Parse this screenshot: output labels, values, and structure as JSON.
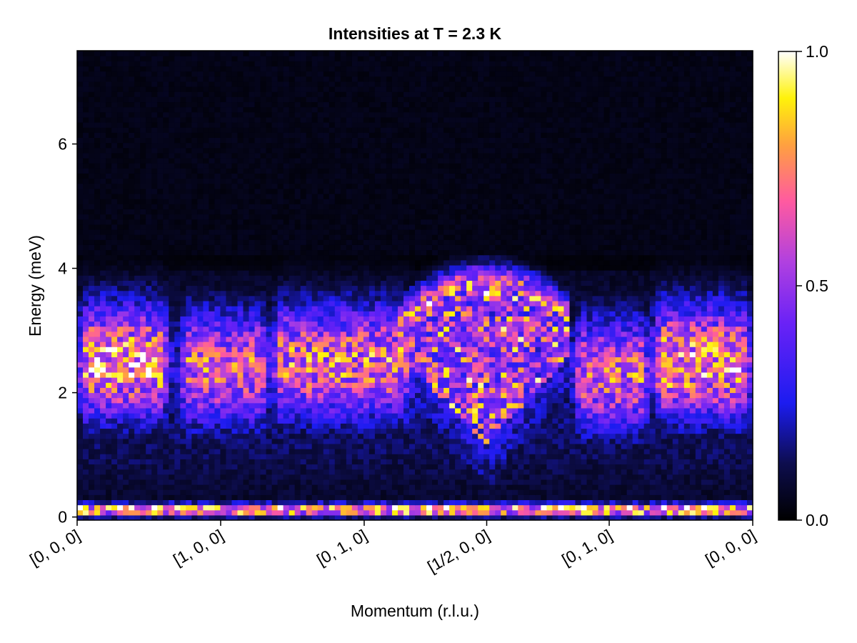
{
  "chart_data": {
    "type": "heatmap",
    "title": "Intensities at T = 2.3 K",
    "xlabel": "Momentum (r.l.u.)",
    "ylabel": "Energy (meV)",
    "x_path_ticks": [
      {
        "pos": 0.0,
        "label": "[0, 0, 0]"
      },
      {
        "pos": 1.0,
        "label": "[1, 0, 0]"
      },
      {
        "pos": 2.0,
        "label": "[0, 1, 0]"
      },
      {
        "pos": 2.8536,
        "label": "[1/2, 0, 0]"
      },
      {
        "pos": 3.7071,
        "label": "[0, 1, 0]"
      },
      {
        "pos": 4.7071,
        "label": "[0, 0, 0]"
      }
    ],
    "xlim": [
      0,
      4.7071
    ],
    "ylim": [
      -0.05,
      7.5
    ],
    "yticks": [
      0,
      2,
      4,
      6
    ],
    "colorbar": {
      "colormap": "gnuplot2",
      "range": [
        0.0,
        1.0
      ],
      "ticks": [
        "0.0",
        "0.5",
        "1.0"
      ]
    },
    "grid": false,
    "features": [
      {
        "name": "elastic line",
        "energy": 0.12,
        "intensity": 1.0
      },
      {
        "name": "dome near [1/2, 0, 0]",
        "x_from": 2.25,
        "x_to": 3.45,
        "e_top": 3.7,
        "intensity": 0.85
      },
      {
        "name": "band [0, 0, 0]-[1, 0, 0]",
        "x_from": 0.0,
        "x_to": 0.65,
        "e_center": 2.5,
        "intensity": 0.9
      },
      {
        "name": "band near [1, 0, 0]",
        "x_from": 0.7,
        "x_to": 1.35,
        "e_center": 2.4,
        "intensity": 0.75
      },
      {
        "name": "band rising to [0, 1, 0]",
        "x_from": 1.35,
        "x_to": 2.35,
        "e_center": 2.5,
        "intensity": 0.8
      },
      {
        "name": "band after [0, 1, 0]",
        "x_from": 3.45,
        "x_to": 4.0,
        "e_center": 2.3,
        "intensity": 0.75
      },
      {
        "name": "band toward [0, 0, 0]",
        "x_from": 4.0,
        "x_to": 4.7071,
        "e_center": 2.5,
        "intensity": 0.9
      }
    ]
  }
}
